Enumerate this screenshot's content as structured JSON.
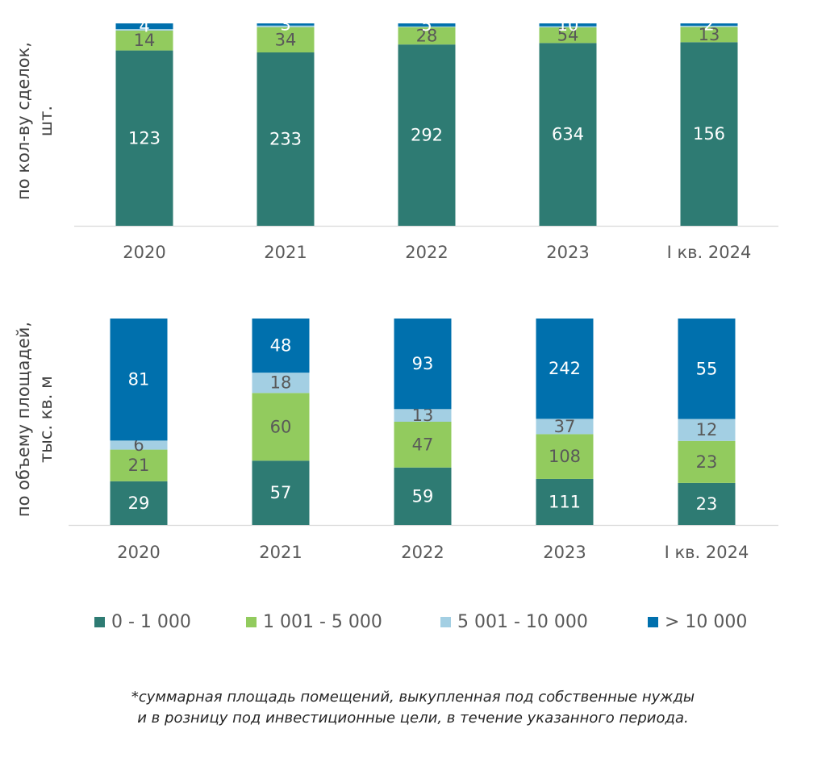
{
  "chart_data": [
    {
      "type": "bar",
      "stacked": true,
      "ylabel_lines": [
        "по кол-ву сделок,",
        "шт."
      ],
      "categories": [
        "2020",
        "2021",
        "2022",
        "2023",
        "I кв. 2024"
      ],
      "series": [
        {
          "name": "0 - 1 000",
          "color": "#2e7b73",
          "values": [
            123,
            233,
            292,
            634,
            156
          ],
          "labels": [
            "123",
            "233",
            "292",
            "634",
            "156"
          ]
        },
        {
          "name": "1 001 - 5 000",
          "color": "#92cb5e",
          "values": [
            14,
            34,
            28,
            54,
            13
          ],
          "labels": [
            "14",
            "34",
            "28",
            "54",
            "13"
          ]
        },
        {
          "name": "5 001 - 10 000",
          "color": "#a3cfe3",
          "values": [
            1,
            2,
            1,
            4,
            1
          ],
          "labels": [
            "",
            "",
            "",
            "",
            ""
          ]
        },
        {
          "name": "> 10 000",
          "color": "#0070ad",
          "values": [
            4,
            3,
            5,
            10,
            2
          ],
          "labels": [
            "4",
            "3",
            "5",
            "10",
            "2"
          ]
        }
      ]
    },
    {
      "type": "bar",
      "stacked": true,
      "ylabel_lines": [
        "по объему площадей,",
        "тыс. кв. м"
      ],
      "categories": [
        "2020",
        "2021",
        "2022",
        "2023",
        "I кв. 2024"
      ],
      "series": [
        {
          "name": "0 - 1 000",
          "color": "#2e7b73",
          "values": [
            29,
            57,
            59,
            111,
            23
          ],
          "labels": [
            "29",
            "57",
            "59",
            "111",
            "23"
          ]
        },
        {
          "name": "1 001 - 5 000",
          "color": "#92cb5e",
          "values": [
            21,
            60,
            47,
            108,
            23
          ],
          "labels": [
            "21",
            "60",
            "47",
            "108",
            "23"
          ]
        },
        {
          "name": "5 001 - 10 000",
          "color": "#a3cfe3",
          "values": [
            6,
            18,
            13,
            37,
            12
          ],
          "labels": [
            "6",
            "18",
            "13",
            "37",
            "12"
          ]
        },
        {
          "name": "> 10 000",
          "color": "#0070ad",
          "values": [
            81,
            48,
            93,
            242,
            55
          ],
          "labels": [
            "81",
            "48",
            "93",
            "242",
            "55"
          ]
        }
      ]
    }
  ],
  "legend": [
    {
      "label": "0 - 1 000",
      "color": "#2e7b73"
    },
    {
      "label": "1 001 - 5 000",
      "color": "#92cb5e"
    },
    {
      "label": "5 001 - 10 000",
      "color": "#a3cfe3"
    },
    {
      "label": "> 10 000",
      "color": "#0070ad"
    }
  ],
  "footnote": {
    "line1": "*суммарная площадь помещений, выкупленная под собственные нужды",
    "line2": "и в розницу под инвестиционные цели, в течение указанного периода."
  }
}
